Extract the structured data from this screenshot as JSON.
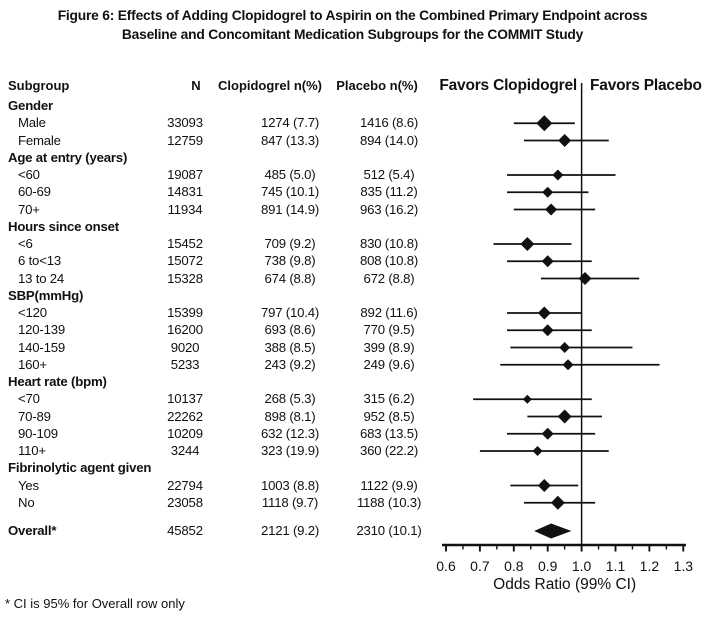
{
  "title": {
    "line1": "Figure 6: Effects of Adding Clopidogrel to Aspirin on the Combined Primary Endpoint across",
    "line2": "Baseline and Concomitant Medication Subgroups for the COMMIT Study"
  },
  "columns": {
    "subgroup": "Subgroup",
    "n": "N",
    "clopidogrel": "Clopidogrel n(%)",
    "placebo": "Placebo n(%)"
  },
  "plot_headers": {
    "left": "Favors Clopidogrel",
    "right": "Favors Placebo"
  },
  "footnote": "* CI is 95% for Overall row only",
  "chart_data": {
    "type": "forest",
    "title": "Figure 6: Effects of Adding Clopidogrel to Aspirin on the Combined Primary Endpoint across Baseline and Concomitant Medication Subgroups for the COMMIT Study",
    "xlabel": "Odds Ratio (99% CI)",
    "x_ticks": [
      0.6,
      0.7,
      0.8,
      0.9,
      1.0,
      1.1,
      1.2,
      1.3
    ],
    "x_range": [
      0.6,
      1.3
    ],
    "reference_line": 1.0,
    "favors_left": "Favors Clopidogrel",
    "favors_right": "Favors Placebo",
    "rows": [
      {
        "kind": "group",
        "label": "Gender"
      },
      {
        "kind": "item",
        "label": "Male",
        "n": "33093",
        "clopidogrel": "1274 (7.7)",
        "placebo": "1416 (8.6)",
        "or": 0.89,
        "ci": [
          0.8,
          0.98
        ],
        "marker": 16
      },
      {
        "kind": "item",
        "label": "Female",
        "n": "12759",
        "clopidogrel": "847 (13.3)",
        "placebo": "894 (14.0)",
        "or": 0.95,
        "ci": [
          0.83,
          1.08
        ],
        "marker": 13
      },
      {
        "kind": "group",
        "label": "Age at entry (years)"
      },
      {
        "kind": "item",
        "label": "<60",
        "n": "19087",
        "clopidogrel": "485 (5.0)",
        "placebo": "512 (5.4)",
        "or": 0.93,
        "ci": [
          0.78,
          1.1
        ],
        "marker": 11
      },
      {
        "kind": "item",
        "label": "60-69",
        "n": "14831",
        "clopidogrel": "745 (10.1)",
        "placebo": "835 (11.2)",
        "or": 0.9,
        "ci": [
          0.78,
          1.02
        ],
        "marker": 11
      },
      {
        "kind": "item",
        "label": "70+",
        "n": "11934",
        "clopidogrel": "891 (14.9)",
        "placebo": "963 (16.2)",
        "or": 0.91,
        "ci": [
          0.8,
          1.04
        ],
        "marker": 12
      },
      {
        "kind": "group",
        "label": "Hours since onset"
      },
      {
        "kind": "item",
        "label": "<6",
        "n": "15452",
        "clopidogrel": "709 (9.2)",
        "placebo": "830 (10.8)",
        "or": 0.84,
        "ci": [
          0.74,
          0.97
        ],
        "marker": 14
      },
      {
        "kind": "item",
        "label": "6 to<13",
        "n": "15072",
        "clopidogrel": "738 (9.8)",
        "placebo": "808 (10.8)",
        "or": 0.9,
        "ci": [
          0.78,
          1.03
        ],
        "marker": 12
      },
      {
        "kind": "item",
        "label": "13 to 24",
        "n": "15328",
        "clopidogrel": "674 (8.8)",
        "placebo": "672 (8.8)",
        "or": 1.01,
        "ci": [
          0.88,
          1.17
        ],
        "marker": 13
      },
      {
        "kind": "group",
        "label": "SBP(mmHg)"
      },
      {
        "kind": "item",
        "label": "<120",
        "n": "15399",
        "clopidogrel": "797 (10.4)",
        "placebo": "892 (11.6)",
        "or": 0.89,
        "ci": [
          0.78,
          1.0
        ],
        "marker": 13
      },
      {
        "kind": "item",
        "label": "120-139",
        "n": "16200",
        "clopidogrel": "693 (8.6)",
        "placebo": "770 (9.5)",
        "or": 0.9,
        "ci": [
          0.78,
          1.03
        ],
        "marker": 12
      },
      {
        "kind": "item",
        "label": "140-159",
        "n": "9020",
        "clopidogrel": "388 (8.5)",
        "placebo": "399 (8.9)",
        "or": 0.95,
        "ci": [
          0.79,
          1.15
        ],
        "marker": 11
      },
      {
        "kind": "item",
        "label": "160+",
        "n": "5233",
        "clopidogrel": "243 (9.2)",
        "placebo": "249 (9.6)",
        "or": 0.96,
        "ci": [
          0.76,
          1.23
        ],
        "marker": 11
      },
      {
        "kind": "group",
        "label": "Heart rate (bpm)"
      },
      {
        "kind": "item",
        "label": "<70",
        "n": "10137",
        "clopidogrel": "268 (5.3)",
        "placebo": "315 (6.2)",
        "or": 0.84,
        "ci": [
          0.68,
          1.03
        ],
        "marker": 9
      },
      {
        "kind": "item",
        "label": "70-89",
        "n": "22262",
        "clopidogrel": "898 (8.1)",
        "placebo": "952 (8.5)",
        "or": 0.95,
        "ci": [
          0.84,
          1.06
        ],
        "marker": 14
      },
      {
        "kind": "item",
        "label": "90-109",
        "n": "10209",
        "clopidogrel": "632 (12.3)",
        "placebo": "683 (13.5)",
        "or": 0.9,
        "ci": [
          0.78,
          1.04
        ],
        "marker": 12
      },
      {
        "kind": "item",
        "label": "110+",
        "n": "3244",
        "clopidogrel": "323 (19.9)",
        "placebo": "360 (22.2)",
        "or": 0.87,
        "ci": [
          0.7,
          1.08
        ],
        "marker": 10
      },
      {
        "kind": "group",
        "label": "Fibrinolytic agent given"
      },
      {
        "kind": "item",
        "label": "Yes",
        "n": "22794",
        "clopidogrel": "1003 (8.8)",
        "placebo": "1122 (9.9)",
        "or": 0.89,
        "ci": [
          0.79,
          0.99
        ],
        "marker": 13
      },
      {
        "kind": "item",
        "label": "No",
        "n": "23058",
        "clopidogrel": "1118 (9.7)",
        "placebo": "1188 (10.3)",
        "or": 0.93,
        "ci": [
          0.83,
          1.04
        ],
        "marker": 14
      }
    ],
    "overall": {
      "label": "Overall*",
      "n": "45852",
      "clopidogrel": "2121 (9.2)",
      "placebo": "2310 (10.1)",
      "or": 0.91,
      "ci": [
        0.86,
        0.97
      ]
    }
  }
}
